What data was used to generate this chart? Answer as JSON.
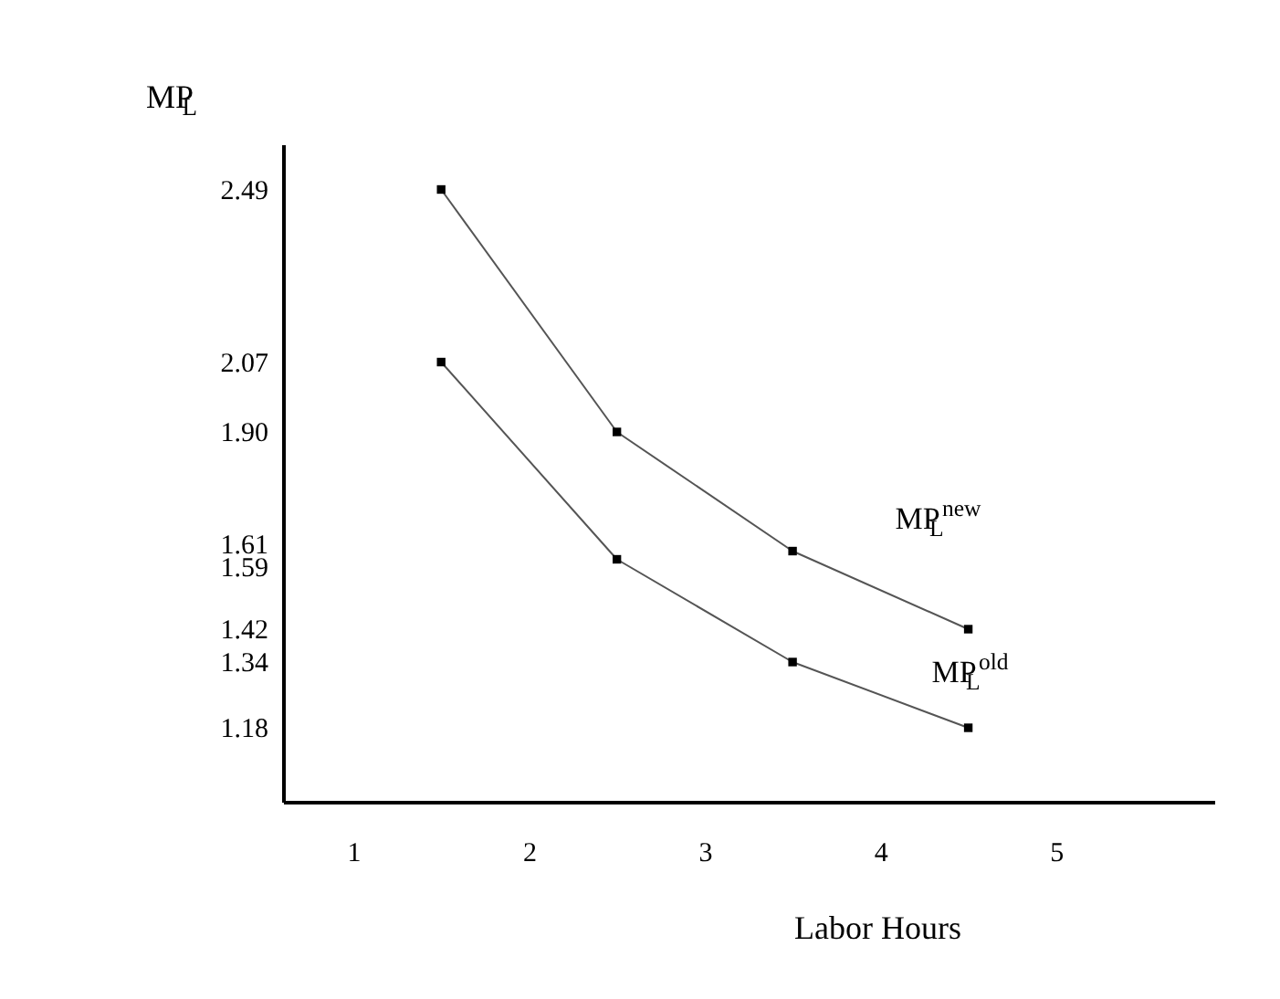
{
  "chart_data": {
    "type": "line",
    "xlabel": "Labor Hours",
    "ylabel": "MP$_{L}$",
    "x": [
      1.5,
      2.5,
      3.5,
      4.5
    ],
    "series": [
      {
        "name": "MP$_{L}$$^{new}$",
        "color": "#000000",
        "values": [
          2.49,
          1.9,
          1.61,
          1.42
        ]
      },
      {
        "name": "MP$_{L}$$^{old}$",
        "color": "#000000",
        "values": [
          2.07,
          1.59,
          1.34,
          1.18
        ]
      }
    ],
    "xlim": [
      0.6,
      5.9
    ],
    "xticks": [
      1,
      2,
      3,
      4,
      5
    ],
    "ylim": [
      1.0,
      2.6
    ],
    "yticks": [
      1.18,
      1.34,
      1.42,
      1.59,
      1.61,
      {
        "value": 1.9,
        "label": "1.90"
      },
      2.07,
      2.49
    ],
    "marker": "square",
    "line_style": "solid",
    "grid": false,
    "legend": false
  }
}
